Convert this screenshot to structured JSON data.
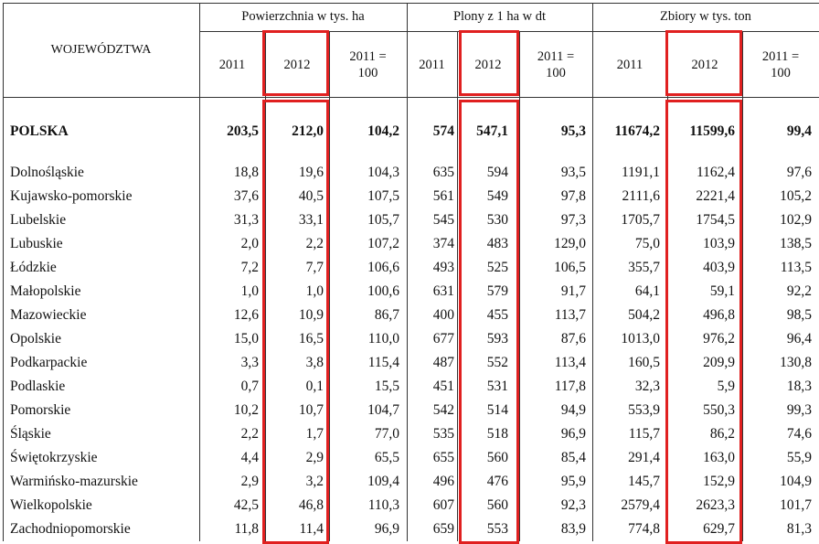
{
  "header": {
    "region_label": "WOJEWÓDZTWA",
    "groups": [
      "Powierzchnia w tys. ha",
      "Plony z 1 ha w dt",
      "Zbiory w tys. ton"
    ],
    "subheaders": [
      "2011",
      "2012",
      "2011 =\n100",
      "2011",
      "2012",
      "2011 =\n100",
      "2011",
      "2012",
      "2011 =\n100"
    ]
  },
  "table": {
    "total": [
      "POLSKA",
      "203,5",
      "212,0",
      "104,2",
      "574",
      "547,1",
      "95,3",
      "11674,2",
      "11599,6",
      "99,4"
    ],
    "rows": [
      [
        "Dolnośląskie",
        "18,8",
        "19,6",
        "104,3",
        "635",
        "594",
        "93,5",
        "1191,1",
        "1162,4",
        "97,6"
      ],
      [
        "Kujawsko-pomorskie",
        "37,6",
        "40,5",
        "107,5",
        "561",
        "549",
        "97,8",
        "2111,6",
        "2221,4",
        "105,2"
      ],
      [
        "Lubelskie",
        "31,3",
        "33,1",
        "105,7",
        "545",
        "530",
        "97,3",
        "1705,7",
        "1754,5",
        "102,9"
      ],
      [
        "Lubuskie",
        "2,0",
        "2,2",
        "107,2",
        "374",
        "483",
        "129,0",
        "75,0",
        "103,9",
        "138,5"
      ],
      [
        "Łódzkie",
        "7,2",
        "7,7",
        "106,6",
        "493",
        "525",
        "106,5",
        "355,7",
        "403,9",
        "113,5"
      ],
      [
        "Małopolskie",
        "1,0",
        "1,0",
        "100,6",
        "631",
        "579",
        "91,7",
        "64,1",
        "59,1",
        "92,2"
      ],
      [
        "Mazowieckie",
        "12,6",
        "10,9",
        "86,7",
        "400",
        "455",
        "113,7",
        "504,2",
        "496,8",
        "98,5"
      ],
      [
        "Opolskie",
        "15,0",
        "16,5",
        "110,0",
        "677",
        "593",
        "87,6",
        "1013,0",
        "976,2",
        "96,4"
      ],
      [
        "Podkarpackie",
        "3,3",
        "3,8",
        "115,4",
        "487",
        "552",
        "113,4",
        "160,5",
        "209,9",
        "130,8"
      ],
      [
        "Podlaskie",
        "0,7",
        "0,1",
        "15,5",
        "451",
        "531",
        "117,8",
        "32,3",
        "5,9",
        "18,3"
      ],
      [
        "Pomorskie",
        "10,2",
        "10,7",
        "104,7",
        "542",
        "514",
        "94,9",
        "553,9",
        "550,3",
        "99,3"
      ],
      [
        "Śląskie",
        "2,2",
        "1,7",
        "77,0",
        "535",
        "518",
        "96,9",
        "115,7",
        "86,2",
        "74,6"
      ],
      [
        "Świętokrzyskie",
        "4,4",
        "2,9",
        "65,5",
        "655",
        "560",
        "85,4",
        "291,4",
        "163,0",
        "55,9"
      ],
      [
        "Warmińsko-mazurskie",
        "2,9",
        "3,2",
        "109,4",
        "496",
        "476",
        "95,9",
        "145,7",
        "152,9",
        "104,9"
      ],
      [
        "Wielkopolskie",
        "42,5",
        "46,8",
        "110,3",
        "607",
        "560",
        "92,3",
        "2579,4",
        "2623,3",
        "101,7"
      ],
      [
        "Zachodniopomorskie",
        "11,8",
        "11,4",
        "96,9",
        "659",
        "553",
        "83,9",
        "774,8",
        "629,7",
        "81,3"
      ]
    ]
  }
}
